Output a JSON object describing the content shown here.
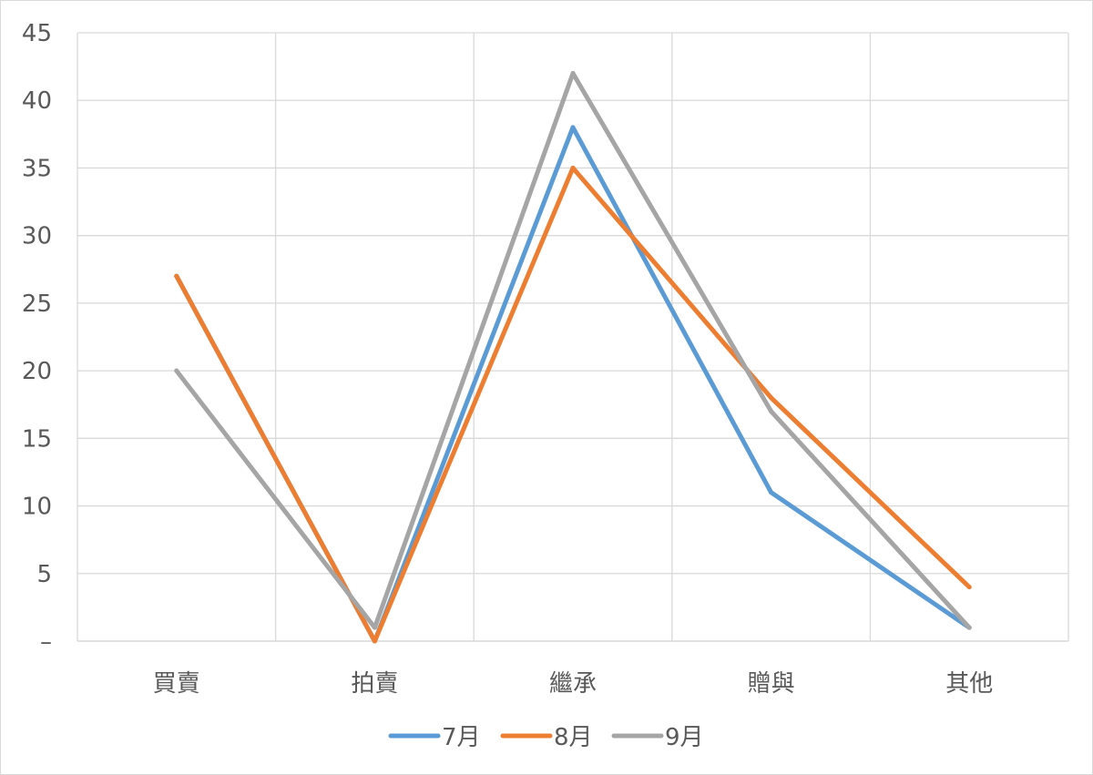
{
  "chart_data": {
    "type": "line",
    "title": "",
    "xlabel": "",
    "ylabel": "",
    "categories": [
      "買賣",
      "拍賣",
      "繼承",
      "贈與",
      "其他"
    ],
    "ylim": [
      0,
      45
    ],
    "yticks": [
      0,
      5,
      10,
      15,
      20,
      25,
      30,
      35,
      40,
      45
    ],
    "ytick_labels": [
      "–",
      "5",
      "10",
      "15",
      "20",
      "25",
      "30",
      "35",
      "40",
      "45"
    ],
    "grid": true,
    "legend_position": "bottom",
    "series": [
      {
        "name": "7月",
        "color": "#5b9bd5",
        "values": [
          27,
          0,
          38,
          11,
          1
        ]
      },
      {
        "name": "8月",
        "color": "#ed7d31",
        "values": [
          27,
          0,
          35,
          18,
          4
        ]
      },
      {
        "name": "9月",
        "color": "#a5a5a5",
        "values": [
          20,
          1,
          42,
          17,
          1
        ]
      }
    ]
  }
}
